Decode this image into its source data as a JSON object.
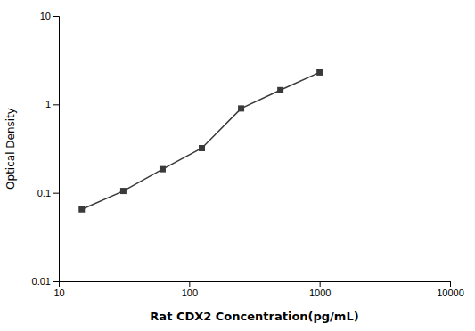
{
  "chart_data": {
    "type": "line",
    "x": [
      15,
      31.25,
      62.5,
      125,
      250,
      500,
      1000
    ],
    "values": [
      0.065,
      0.105,
      0.185,
      0.32,
      0.9,
      1.45,
      2.3
    ],
    "xlabel": "Rat CDX2 Concentration(pg/mL)",
    "ylabel": "Optical Density",
    "log": true,
    "xlim": [
      10,
      10000
    ],
    "ylim": [
      0.01,
      10
    ],
    "xticks": [
      10,
      100,
      1000,
      10000
    ],
    "yticks": [
      0.01,
      0.1,
      1,
      10
    ],
    "color": "#3a3a3a",
    "marker": "square",
    "grid": false
  }
}
